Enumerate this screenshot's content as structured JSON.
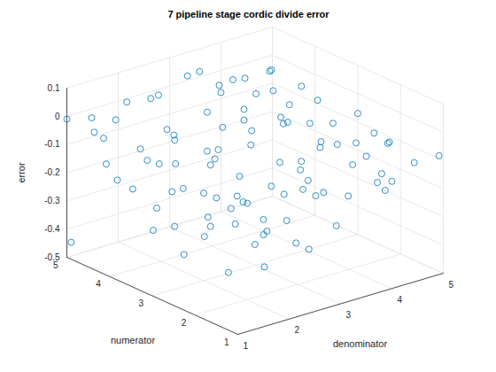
{
  "chart_data": {
    "type": "scatter",
    "title": "7 pipeline stage cordic divide error",
    "xlabel": "denominator",
    "ylabel": "numerator",
    "zlabel": "error",
    "xlim": [
      1,
      5
    ],
    "ylim": [
      1,
      5
    ],
    "zlim": [
      -0.5,
      0.1
    ],
    "xticks": [
      1,
      2,
      3,
      4,
      5
    ],
    "yticks": [
      1,
      2,
      3,
      4,
      5
    ],
    "zticks": [
      -0.5,
      -0.4,
      -0.3,
      -0.2,
      -0.1,
      0,
      0.1
    ],
    "grid": true,
    "color": "#0072bd",
    "marker": "circle",
    "x": [
      1.0,
      1.0,
      1.2,
      1.4,
      1.7,
      2.0,
      2.3,
      2.7,
      3.1,
      3.5,
      3.9,
      4.3,
      4.7,
      1.1,
      1.4,
      1.6,
      1.9,
      2.2,
      2.5,
      2.9,
      3.3,
      3.7,
      4.1,
      4.5,
      4.9,
      1.2,
      1.5,
      1.8,
      2.1,
      2.4,
      2.8,
      3.2,
      3.6,
      4.0,
      4.4,
      4.8,
      1.1,
      1.3,
      1.6,
      2.0,
      2.3,
      2.6,
      3.0,
      3.4,
      3.8,
      4.2,
      4.6,
      5.0,
      1.2,
      1.5,
      1.8,
      2.2,
      2.5,
      2.9,
      3.3,
      3.7,
      4.1,
      4.5,
      4.9,
      1.1,
      1.4,
      1.7,
      2.0,
      2.4,
      2.7,
      3.1,
      3.5,
      3.9,
      4.3,
      4.7,
      1.2,
      1.6,
      1.9,
      2.3,
      2.6,
      3.0,
      3.4,
      3.8,
      4.2,
      4.6,
      5.0,
      1.3,
      2.6,
      3.5,
      4.6,
      1.7,
      2.9,
      4.3,
      2.1,
      3.6,
      4.8,
      1.0,
      2.8,
      4.0,
      3.2,
      4.9,
      4.5,
      2.2,
      3.9,
      1.5
    ],
    "y": [
      4.9,
      5.0,
      4.6,
      4.9,
      4.7,
      4.8,
      4.6,
      4.9,
      4.7,
      4.9,
      4.6,
      4.8,
      4.7,
      4.2,
      4.3,
      4.0,
      4.2,
      4.1,
      4.3,
      4.0,
      4.2,
      4.1,
      4.3,
      4.0,
      4.2,
      3.7,
      3.5,
      3.8,
      3.6,
      3.4,
      3.7,
      3.5,
      3.8,
      3.6,
      3.4,
      3.7,
      3.1,
      2.9,
      3.2,
      3.0,
      3.2,
      2.8,
      3.1,
      2.9,
      3.2,
      2.9,
      3.1,
      3.0,
      2.5,
      2.3,
      2.6,
      2.4,
      2.2,
      2.5,
      2.3,
      2.6,
      2.4,
      2.2,
      2.5,
      1.9,
      1.7,
      2.0,
      1.8,
      1.6,
      1.9,
      1.7,
      2.0,
      1.8,
      1.6,
      1.9,
      1.3,
      1.1,
      1.4,
      1.2,
      1.4,
      1.1,
      1.3,
      1.1,
      1.4,
      1.2,
      1.1,
      4.5,
      4.4,
      4.4,
      4.5,
      3.3,
      3.3,
      3.9,
      2.1,
      2.2,
      2.8,
      1.5,
      1.5,
      1.0,
      4.0,
      4.9,
      1.7,
      2.9,
      3.0,
      1.0
    ],
    "z": [
      -0.44,
      -0.01,
      -0.04,
      -0.02,
      -0.03,
      0.01,
      0.02,
      -0.01,
      0.05,
      0.03,
      0.0,
      -0.03,
      -0.02,
      -0.12,
      -0.2,
      -0.08,
      -0.15,
      -0.05,
      -0.1,
      -0.02,
      0.04,
      -0.06,
      -0.04,
      -0.08,
      -0.05,
      -0.18,
      -0.25,
      -0.13,
      -0.22,
      -0.09,
      -0.16,
      -0.03,
      -0.11,
      -0.07,
      -0.1,
      -0.06,
      -0.28,
      -0.14,
      -0.3,
      -0.19,
      -0.12,
      -0.24,
      -0.08,
      -0.15,
      -0.05,
      -0.12,
      -0.09,
      -0.07,
      -0.33,
      -0.2,
      -0.27,
      -0.1,
      -0.31,
      -0.18,
      -0.13,
      -0.21,
      -0.09,
      -0.14,
      -0.1,
      -0.22,
      -0.35,
      -0.16,
      -0.29,
      -0.12,
      -0.25,
      -0.17,
      -0.2,
      -0.11,
      -0.15,
      -0.08,
      -0.14,
      -0.3,
      -0.21,
      -0.26,
      -0.1,
      -0.23,
      -0.16,
      -0.12,
      -0.19,
      -0.1,
      -0.09,
      -0.06,
      -0.13,
      -0.01,
      -0.07,
      -0.09,
      -0.27,
      -0.13,
      -0.17,
      -0.06,
      -0.15,
      -0.05,
      -0.33,
      -0.12,
      -0.09,
      -0.04,
      -0.06,
      -0.04,
      -0.18,
      -0.12
    ]
  }
}
